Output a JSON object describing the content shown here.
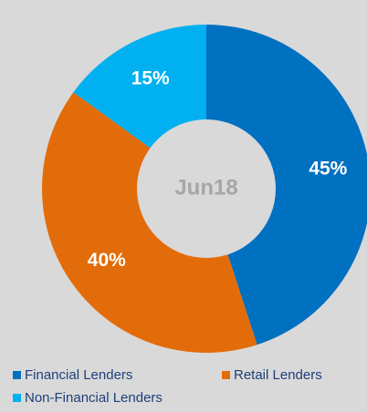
{
  "chart_data": {
    "type": "donut",
    "center_label": "Jun18",
    "categories": [
      "Financial Lenders",
      "Retail Lenders",
      "Non-Financial Lenders"
    ],
    "values": [
      45,
      40,
      15
    ],
    "value_labels": [
      "45%",
      "40%",
      "15%"
    ],
    "colors": [
      "#0070c0",
      "#e36c0a",
      "#00b0f0"
    ]
  }
}
